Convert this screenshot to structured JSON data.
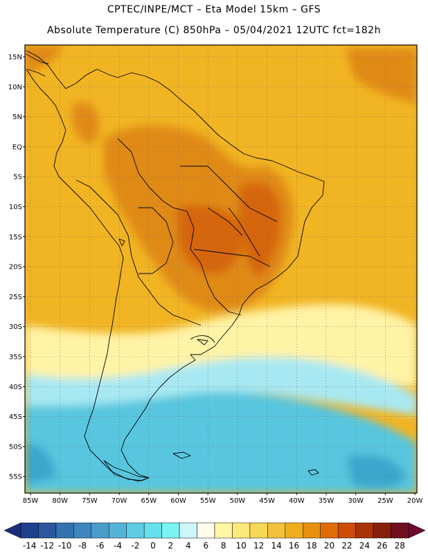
{
  "header": {
    "line1": "CPTEC/INPE/MCT –  Eta Model 15km – GFS",
    "line2": "Absolute Temperature (C) 850hPa – 05/04/2021 12UTC fct=182h"
  },
  "map": {
    "lat_labels": [
      "15N",
      "10N",
      "5N",
      "EQ",
      "5S",
      "10S",
      "15S",
      "20S",
      "25S",
      "30S",
      "35S",
      "40S",
      "45S",
      "50S",
      "55S"
    ],
    "lon_labels": [
      "85W",
      "80W",
      "75W",
      "70W",
      "65W",
      "60W",
      "55W",
      "50W",
      "45W",
      "40W",
      "35W",
      "30W",
      "25W",
      "20W"
    ]
  },
  "colorbar": {
    "labels": [
      "-14",
      "-12",
      "-10",
      "-8",
      "-6",
      "-4",
      "-2",
      "0",
      "2",
      "4",
      "6",
      "8",
      "10",
      "12",
      "14",
      "16",
      "18",
      "20",
      "22",
      "24",
      "26",
      "28"
    ],
    "colors": [
      "#1f3f8f",
      "#2a57a0",
      "#3471b0",
      "#3e86bd",
      "#4a9ccb",
      "#56b3d8",
      "#5ecbe2",
      "#66e0ec",
      "#7af3f3",
      "#cdf6fa",
      "#fffaea",
      "#fff6a6",
      "#fbe87a",
      "#f7d758",
      "#f3c23a",
      "#f0ae1e",
      "#e88f10",
      "#e06c08",
      "#cc4c08",
      "#a83306",
      "#86200a",
      "#70101e"
    ],
    "left_arrow_color": "#1a2f7a",
    "right_arrow_color": "#6e0a30"
  },
  "region_colors": {
    "ocean": "#f1b422",
    "cold_ocean": "#58c6de",
    "very_cold": "#3aa6cc",
    "cool": "#a8e8f2",
    "mild": "#fff3a6",
    "hot": "#e08a12",
    "very_hot": "#d56610"
  }
}
